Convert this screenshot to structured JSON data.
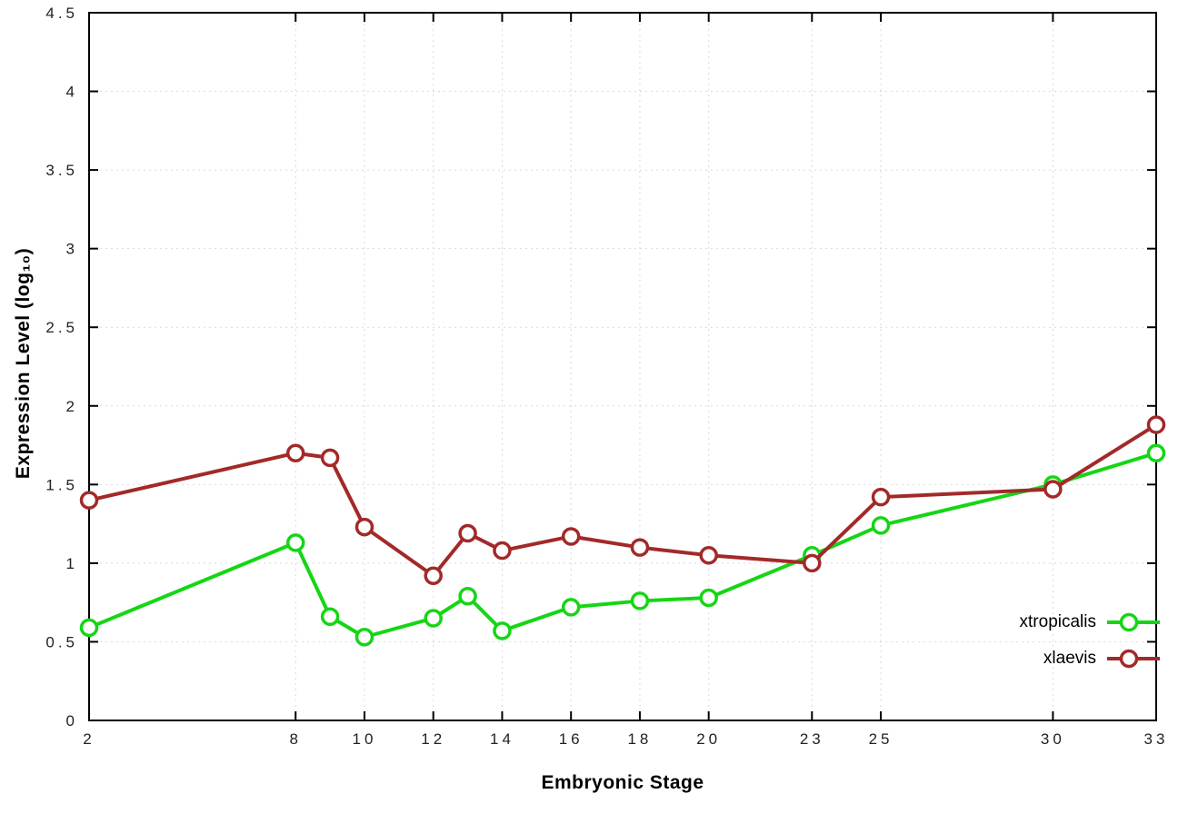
{
  "chart_data": {
    "type": "line",
    "title": "",
    "xlabel": "Embryonic Stage",
    "ylabel": "Expression Level (log₁₀)",
    "xlim": [
      2,
      33
    ],
    "ylim": [
      0,
      4.5
    ],
    "grid": true,
    "legend_position": "inside-bottom-right",
    "x": [
      2,
      8,
      9,
      10,
      12,
      13,
      14,
      16,
      18,
      20,
      23,
      25,
      30,
      33
    ],
    "x_tick_labels": [
      "2",
      "8",
      "10",
      "12",
      "14",
      "16",
      "18",
      "20",
      "23",
      "25",
      "30",
      "33"
    ],
    "x_tick_values": [
      2,
      8,
      10,
      12,
      14,
      16,
      18,
      20,
      23,
      25,
      30,
      33
    ],
    "y_tick_labels": [
      "0",
      "0.5",
      "1",
      "1.5",
      "2",
      "2.5",
      "3",
      "3.5",
      "4",
      "4.5"
    ],
    "y_tick_values": [
      0,
      0.5,
      1,
      1.5,
      2,
      2.5,
      3,
      3.5,
      4,
      4.5
    ],
    "series": [
      {
        "name": "xtropicalis",
        "color": "#15d615",
        "values": [
          0.59,
          1.13,
          0.66,
          0.53,
          0.65,
          0.79,
          0.57,
          0.72,
          0.76,
          0.78,
          1.05,
          1.24,
          1.5,
          1.7
        ]
      },
      {
        "name": "xlaevis",
        "color": "#a32929",
        "values": [
          1.4,
          1.7,
          1.67,
          1.23,
          0.92,
          1.19,
          1.08,
          1.17,
          1.1,
          1.05,
          1.0,
          1.42,
          1.47,
          1.88
        ]
      }
    ],
    "grid_color": "#d9d9d9",
    "border_color": "#000000",
    "tick_label_color": "#222222"
  }
}
